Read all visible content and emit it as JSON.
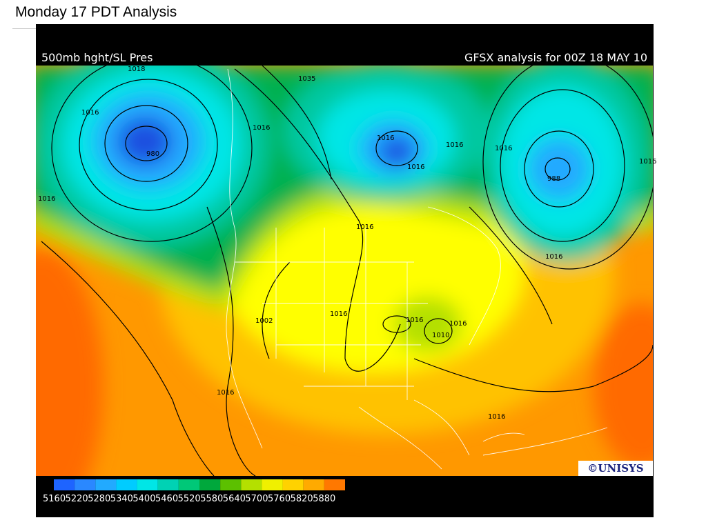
{
  "header": {
    "title": "Monday 17 PDT Analysis"
  },
  "map": {
    "left_label": "500mb hght/SL Pres",
    "right_label": "GFSX analysis for 00Z 18 MAY 10",
    "credit": "©UNISYS",
    "legend": {
      "labels": [
        "5160",
        "5220",
        "5280",
        "5340",
        "5400",
        "5460",
        "5520",
        "5580",
        "5640",
        "5700",
        "5760",
        "5820",
        "5880"
      ],
      "colors": [
        "#1e64ff",
        "#2a88ff",
        "#22aaff",
        "#00ccff",
        "#00e6e6",
        "#00d2b4",
        "#00c878",
        "#00a83c",
        "#5cc000",
        "#b4e000",
        "#f0f000",
        "#ffd200",
        "#ffaa00",
        "#ff7800"
      ]
    },
    "contour_labels": [
      "1018",
      "1035",
      "1016",
      "1016",
      "1016",
      "980",
      "1016",
      "1016",
      "1016",
      "1016",
      "988",
      "1016",
      "1016",
      "1016",
      "1016",
      "1002",
      "1016",
      "1016",
      "1010",
      "1016",
      "1016"
    ]
  }
}
